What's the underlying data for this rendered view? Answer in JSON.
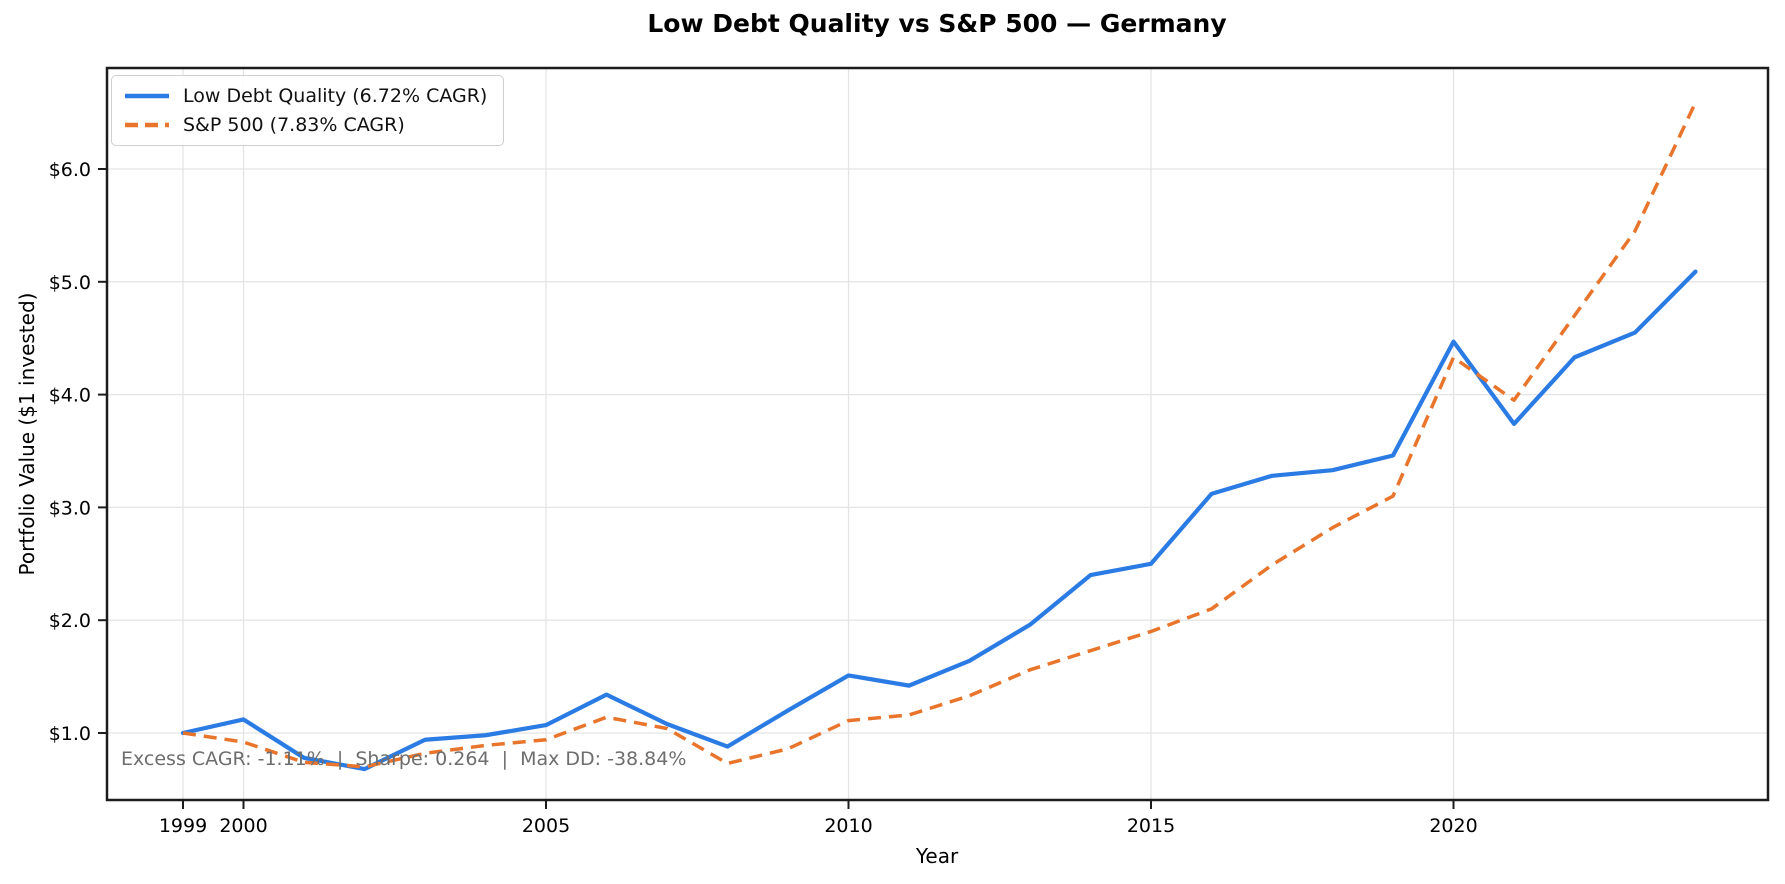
{
  "title": "Low Debt Quality vs S&P 500 — Germany",
  "axes": {
    "xlabel": "Year",
    "ylabel": "Portfolio Value ($1 invested)"
  },
  "annotation": "Excess CAGR: -1.11%  |  Sharpe: 0.264  |  Max DD: -38.84%",
  "legend": {
    "items": [
      {
        "label": "Low Debt Quality (6.72% CAGR)"
      },
      {
        "label": "S&P 500 (7.83% CAGR)"
      }
    ]
  },
  "colors": {
    "strategy_blue": "#2b7be4",
    "benchmark_orange": "#e8752b",
    "grid": "#e4e4e4",
    "spine": "#1c1c1c",
    "annotation_gray": "#6e6e6e"
  },
  "chart_data": {
    "type": "line",
    "title": "Low Debt Quality vs S&P 500 — Germany",
    "xlabel": "Year",
    "ylabel": "Portfolio Value ($1 invested)",
    "grid": true,
    "legend_position": "upper left",
    "xlim": [
      1997.7,
      2025.2
    ],
    "ylim": [
      0.4,
      6.9
    ],
    "x_ticks": [
      1999,
      2000,
      2005,
      2010,
      2015,
      2020
    ],
    "y_ticks": [
      {
        "value": 1,
        "label": "$1.0"
      },
      {
        "value": 2,
        "label": "$2.0"
      },
      {
        "value": 3,
        "label": "$3.0"
      },
      {
        "value": 4,
        "label": "$4.0"
      },
      {
        "value": 5,
        "label": "$5.0"
      },
      {
        "value": 6,
        "label": "$6.0"
      }
    ],
    "x": [
      1999,
      2000,
      2001,
      2002,
      2003,
      2004,
      2005,
      2006,
      2007,
      2008,
      2009,
      2010,
      2011,
      2012,
      2013,
      2014,
      2015,
      2016,
      2017,
      2018,
      2019,
      2020,
      2021,
      2022,
      2023,
      2024
    ],
    "series": [
      {
        "name": "Low Debt Quality (6.72% CAGR)",
        "style": "solid",
        "color": "#2b7be4",
        "values": [
          1.0,
          1.12,
          0.78,
          0.68,
          0.94,
          0.98,
          1.07,
          1.34,
          1.08,
          0.88,
          1.2,
          1.51,
          1.42,
          1.64,
          1.96,
          2.4,
          2.5,
          3.12,
          3.28,
          3.33,
          3.46,
          4.47,
          3.74,
          4.33,
          4.55,
          5.09
        ]
      },
      {
        "name": "S&P 500 (7.83% CAGR)",
        "style": "dashed",
        "color": "#e8752b",
        "values": [
          1.0,
          0.92,
          0.74,
          0.7,
          0.82,
          0.89,
          0.94,
          1.14,
          1.04,
          0.73,
          0.86,
          1.11,
          1.16,
          1.33,
          1.56,
          1.73,
          1.9,
          2.1,
          2.49,
          2.82,
          3.1,
          4.33,
          3.95,
          4.7,
          5.45,
          6.59
        ]
      }
    ]
  }
}
